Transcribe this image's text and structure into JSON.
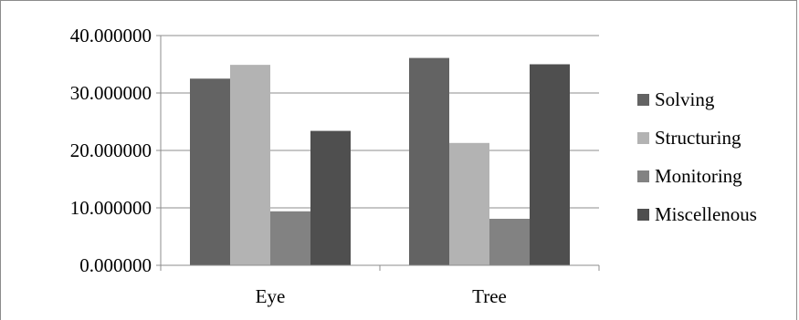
{
  "chart_data": {
    "type": "bar",
    "title": "",
    "xlabel": "",
    "ylabel": "",
    "categories": [
      "Eye",
      "Tree"
    ],
    "series": [
      {
        "name": "Solving",
        "color": "#636363",
        "values": [
          32.5,
          36.1
        ]
      },
      {
        "name": "Structuring",
        "color": "#b3b3b3",
        "values": [
          34.9,
          21.3
        ]
      },
      {
        "name": "Monitoring",
        "color": "#828282",
        "values": [
          9.4,
          8.1
        ]
      },
      {
        "name": "Miscellenous",
        "color": "#4f4f4f",
        "values": [
          23.4,
          35.0
        ]
      }
    ],
    "ylim": [
      0,
      40
    ],
    "yticks": [
      0,
      10,
      20,
      30,
      40
    ],
    "ytick_labels": [
      "0.000000",
      "10.000000",
      "20.000000",
      "30.000000",
      "40.000000"
    ],
    "grid": true,
    "legend_position": "right"
  }
}
